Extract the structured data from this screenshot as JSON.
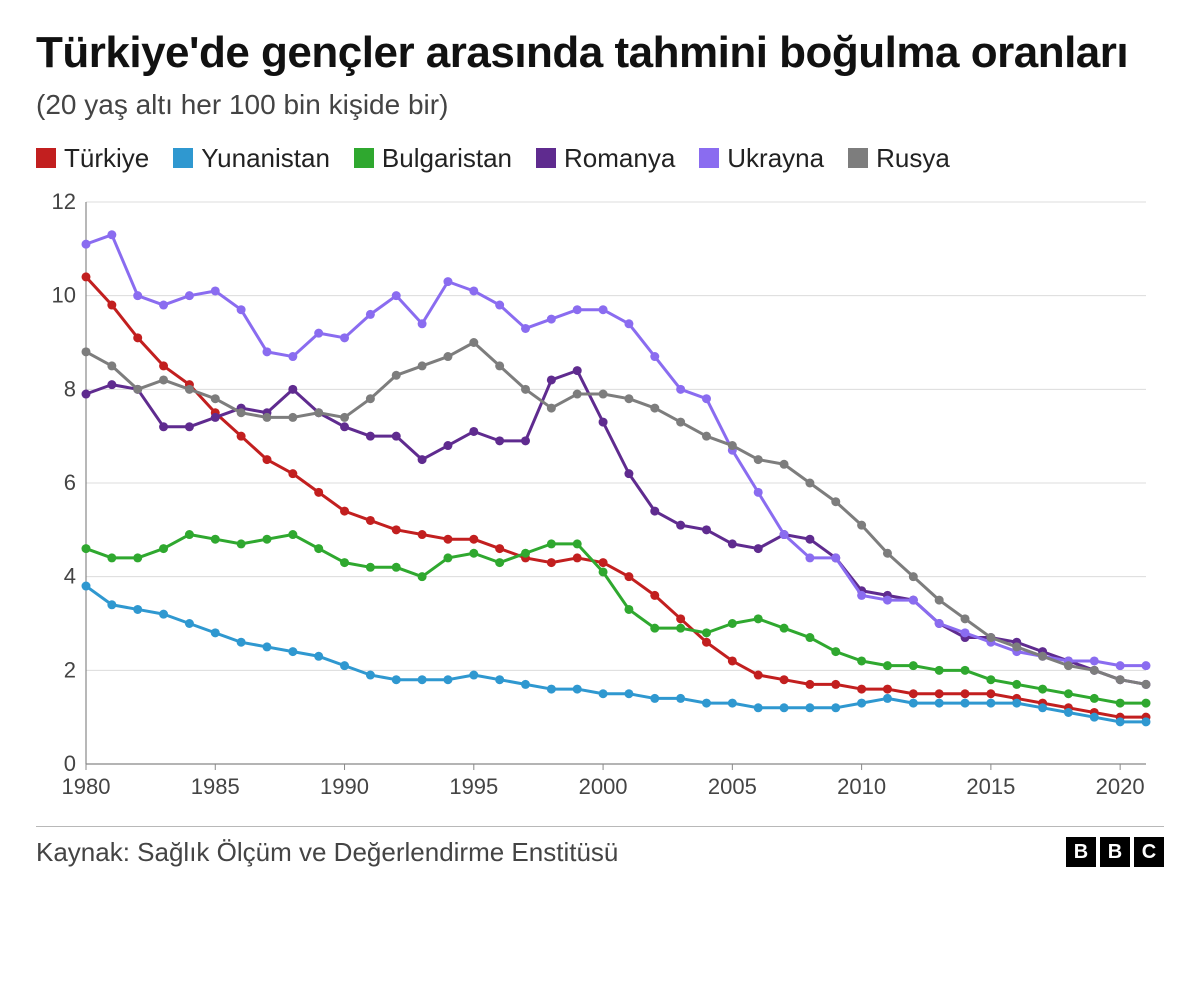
{
  "title": "Türkiye'de gençler arasında tahmini boğulma oranları",
  "subtitle": "(20 yaş altı her 100 bin kişide bir)",
  "source_label": "Kaynak: Sağlık Ölçüm ve Değerlendirme Enstitüsü",
  "brand": {
    "letters": [
      "B",
      "B",
      "C"
    ]
  },
  "chart": {
    "type": "line",
    "background_color": "#ffffff",
    "grid_color": "#dcdcdc",
    "axis_color": "#888888",
    "text_color": "#444444",
    "title_fontsize": 44,
    "subtitle_fontsize": 28,
    "axis_fontsize": 22,
    "legend_fontsize": 26,
    "line_width": 3,
    "marker_radius": 4.5,
    "x": {
      "min": 1980,
      "max": 2021,
      "ticks": [
        1980,
        1985,
        1990,
        1995,
        2000,
        2005,
        2010,
        2015,
        2020
      ]
    },
    "y": {
      "min": 0,
      "max": 12,
      "ticks": [
        0,
        2,
        4,
        6,
        8,
        10,
        12
      ]
    },
    "years": [
      1980,
      1981,
      1982,
      1983,
      1984,
      1985,
      1986,
      1987,
      1988,
      1989,
      1990,
      1991,
      1992,
      1993,
      1994,
      1995,
      1996,
      1997,
      1998,
      1999,
      2000,
      2001,
      2002,
      2003,
      2004,
      2005,
      2006,
      2007,
      2008,
      2009,
      2010,
      2011,
      2012,
      2013,
      2014,
      2015,
      2016,
      2017,
      2018,
      2019,
      2020,
      2021
    ],
    "series": [
      {
        "key": "turkiye",
        "label": "Türkiye",
        "color": "#c21f1f",
        "values": [
          10.4,
          9.8,
          9.1,
          8.5,
          8.1,
          7.5,
          7.0,
          6.5,
          6.2,
          5.8,
          5.4,
          5.2,
          5.0,
          4.9,
          4.8,
          4.8,
          4.6,
          4.4,
          4.3,
          4.4,
          4.3,
          4.0,
          3.6,
          3.1,
          2.6,
          2.2,
          1.9,
          1.8,
          1.7,
          1.7,
          1.6,
          1.6,
          1.5,
          1.5,
          1.5,
          1.5,
          1.4,
          1.3,
          1.2,
          1.1,
          1.0,
          1.0
        ]
      },
      {
        "key": "yunanistan",
        "label": "Yunanistan",
        "color": "#2f98d0",
        "values": [
          3.8,
          3.4,
          3.3,
          3.2,
          3.0,
          2.8,
          2.6,
          2.5,
          2.4,
          2.3,
          2.1,
          1.9,
          1.8,
          1.8,
          1.8,
          1.9,
          1.8,
          1.7,
          1.6,
          1.6,
          1.5,
          1.5,
          1.4,
          1.4,
          1.3,
          1.3,
          1.2,
          1.2,
          1.2,
          1.2,
          1.3,
          1.4,
          1.3,
          1.3,
          1.3,
          1.3,
          1.3,
          1.2,
          1.1,
          1.0,
          0.9,
          0.9
        ]
      },
      {
        "key": "bulgaristan",
        "label": "Bulgaristan",
        "color": "#2fa82f",
        "values": [
          4.6,
          4.4,
          4.4,
          4.6,
          4.9,
          4.8,
          4.7,
          4.8,
          4.9,
          4.6,
          4.3,
          4.2,
          4.2,
          4.0,
          4.4,
          4.5,
          4.3,
          4.5,
          4.7,
          4.7,
          4.1,
          3.3,
          2.9,
          2.9,
          2.8,
          3.0,
          3.1,
          2.9,
          2.7,
          2.4,
          2.2,
          2.1,
          2.1,
          2.0,
          2.0,
          1.8,
          1.7,
          1.6,
          1.5,
          1.4,
          1.3,
          1.3
        ]
      },
      {
        "key": "romanya",
        "label": "Romanya",
        "color": "#5f2b8f",
        "values": [
          7.9,
          8.1,
          8.0,
          7.2,
          7.2,
          7.4,
          7.6,
          7.5,
          8.0,
          7.5,
          7.2,
          7.0,
          7.0,
          6.5,
          6.8,
          7.1,
          6.9,
          6.9,
          8.2,
          8.4,
          7.3,
          6.2,
          5.4,
          5.1,
          5.0,
          4.7,
          4.6,
          4.9,
          4.8,
          4.4,
          3.7,
          3.6,
          3.5,
          3.0,
          2.7,
          2.7,
          2.6,
          2.4,
          2.2,
          2.0,
          1.8,
          1.7
        ]
      },
      {
        "key": "ukrayna",
        "label": "Ukrayna",
        "color": "#8a6cf0",
        "values": [
          11.1,
          11.3,
          10.0,
          9.8,
          10.0,
          10.1,
          9.7,
          8.8,
          8.7,
          9.2,
          9.1,
          9.6,
          10.0,
          9.4,
          10.3,
          10.1,
          9.8,
          9.3,
          9.5,
          9.7,
          9.7,
          9.4,
          8.7,
          8.0,
          7.8,
          6.7,
          5.8,
          4.9,
          4.4,
          4.4,
          3.6,
          3.5,
          3.5,
          3.0,
          2.8,
          2.6,
          2.4,
          2.3,
          2.2,
          2.2,
          2.1,
          2.1
        ]
      },
      {
        "key": "rusya",
        "label": "Rusya",
        "color": "#7d7d7d",
        "values": [
          8.8,
          8.5,
          8.0,
          8.2,
          8.0,
          7.8,
          7.5,
          7.4,
          7.4,
          7.5,
          7.4,
          7.8,
          8.3,
          8.5,
          8.7,
          9.0,
          8.5,
          8.0,
          7.6,
          7.9,
          7.9,
          7.8,
          7.6,
          7.3,
          7.0,
          6.8,
          6.5,
          6.4,
          6.0,
          5.6,
          5.1,
          4.5,
          4.0,
          3.5,
          3.1,
          2.7,
          2.5,
          2.3,
          2.1,
          2.0,
          1.8,
          1.7
        ]
      }
    ]
  }
}
